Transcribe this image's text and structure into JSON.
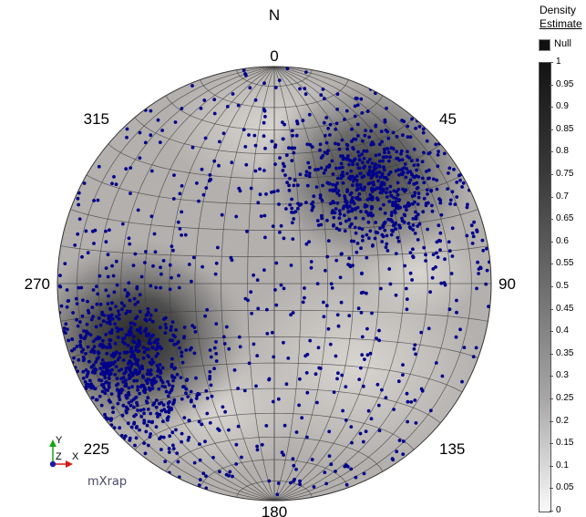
{
  "chart_data": {
    "type": "scatter",
    "subtype": "stereonet-lower-hemisphere-density",
    "north_label": "N",
    "azimuth_labels": [
      {
        "az": 0,
        "text": "0"
      },
      {
        "az": 45,
        "text": "45"
      },
      {
        "az": 90,
        "text": "90"
      },
      {
        "az": 135,
        "text": "135"
      },
      {
        "az": 180,
        "text": "180"
      },
      {
        "az": 225,
        "text": "225"
      },
      {
        "az": 270,
        "text": "270"
      },
      {
        "az": 315,
        "text": "315"
      }
    ],
    "grid": true,
    "clusters": [
      {
        "trend": 45,
        "plunge": 35,
        "spread_deg": 16,
        "count": 520
      },
      {
        "trend": 240,
        "plunge": 22,
        "spread_deg": 17,
        "count": 650
      }
    ],
    "background_points": 560,
    "point_color": "#00008b",
    "legend": {
      "title_line1": "Density",
      "title_line2": "Estimate",
      "null_label": "Null",
      "placement": "right",
      "ticks": [
        "1",
        "0.95",
        "0.9",
        "0.85",
        "0.8",
        "0.75",
        "0.7",
        "0.65",
        "0.6",
        "0.55",
        "0.5",
        "0.45",
        "0.4",
        "0.35",
        "0.3",
        "0.25",
        "0.2",
        "0.15",
        "0.1",
        "0.05",
        "0"
      ]
    }
  },
  "axes_icon": {
    "x": "X",
    "y": "Y",
    "z": "Z"
  },
  "brand": "mXrap"
}
